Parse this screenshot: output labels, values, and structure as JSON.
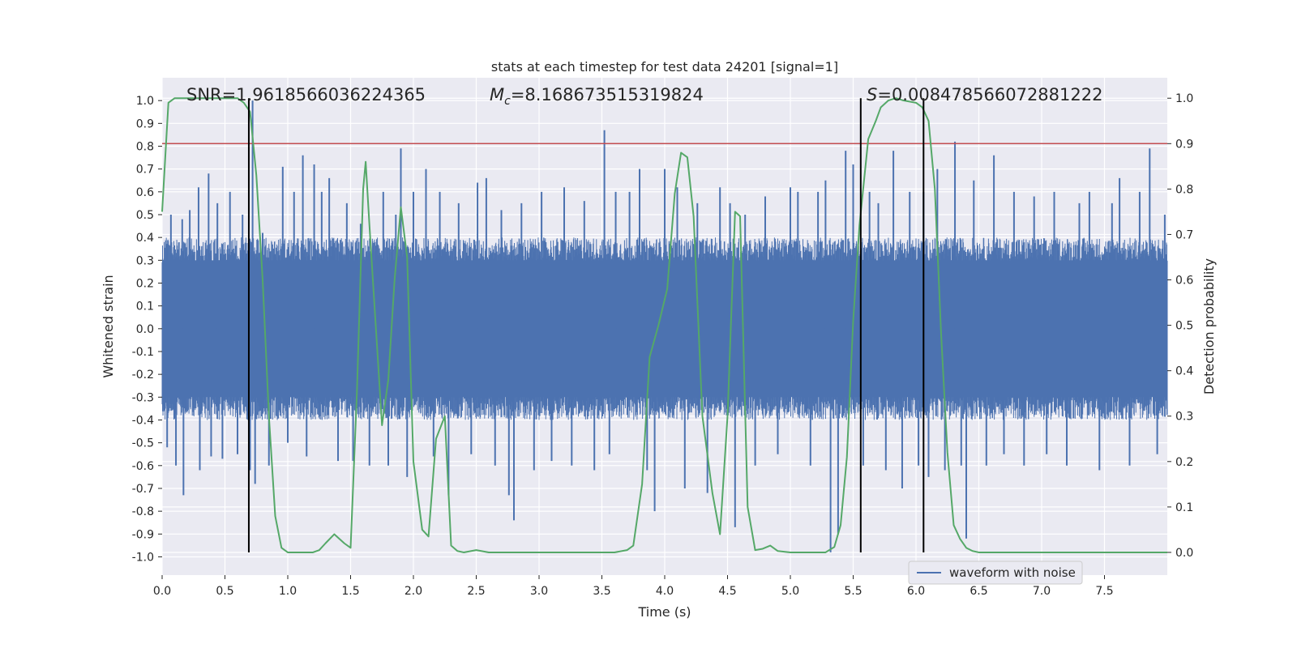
{
  "chart_data": {
    "type": "line",
    "title": "stats at each timestep for test data 24201 [signal=1]",
    "xlabel": "Time (s)",
    "ylabel": "Whitened strain",
    "y2label": "Detection probability",
    "xlim": [
      0.0,
      8.0
    ],
    "ylim": [
      -1.08,
      1.1
    ],
    "y2lim": [
      -0.05,
      1.045
    ],
    "xticks": [
      "0.0",
      "0.5",
      "1.0",
      "1.5",
      "2.0",
      "2.5",
      "3.0",
      "3.5",
      "4.0",
      "4.5",
      "5.0",
      "5.5",
      "6.0",
      "6.5",
      "7.0",
      "7.5"
    ],
    "yticks": [
      "1.0",
      "0.9",
      "0.8",
      "0.7",
      "0.6",
      "0.5",
      "0.4",
      "0.3",
      "0.2",
      "0.1",
      "0.0",
      "-0.1",
      "-0.2",
      "-0.3",
      "-0.4",
      "-0.5",
      "-0.6",
      "-0.7",
      "-0.8",
      "-0.9",
      "-1.0"
    ],
    "y2ticks": [
      "1.0",
      "0.9",
      "0.8",
      "0.7",
      "0.6",
      "0.5",
      "0.4",
      "0.3",
      "0.2",
      "0.1",
      "0.0"
    ],
    "grid": true,
    "legend": {
      "placement": "lower-right",
      "entries": [
        "waveform with noise"
      ]
    },
    "annotations": {
      "snr_label": "SNR=1.9618566036224365",
      "mc_symbol": "M",
      "mc_sub": "c",
      "mc_value": "=8.168673515319824",
      "s_symbol": "S",
      "s_value": "=0.008478566072881222"
    },
    "threshold": {
      "value": 0.9,
      "axis": "y2",
      "color": "#c44e52"
    },
    "vertical_lines": [
      0.69,
      5.56,
      6.06
    ],
    "waveform": {
      "name": "waveform with noise",
      "color": "#4c72b0",
      "envelope_typical": 0.4,
      "spikes": [
        [
          0.04,
          -0.52
        ],
        [
          0.07,
          0.5
        ],
        [
          0.11,
          -0.6
        ],
        [
          0.16,
          0.48
        ],
        [
          0.17,
          -0.73
        ],
        [
          0.22,
          0.52
        ],
        [
          0.29,
          0.62
        ],
        [
          0.3,
          -0.62
        ],
        [
          0.37,
          0.68
        ],
        [
          0.39,
          -0.56
        ],
        [
          0.44,
          0.55
        ],
        [
          0.48,
          -0.57
        ],
        [
          0.54,
          0.6
        ],
        [
          0.6,
          -0.55
        ],
        [
          0.64,
          0.5
        ],
        [
          0.7,
          -0.62
        ],
        [
          0.72,
          1.0
        ],
        [
          0.74,
          -0.68
        ],
        [
          0.8,
          0.42
        ],
        [
          0.85,
          -0.6
        ],
        [
          0.96,
          0.71
        ],
        [
          1.0,
          -0.5
        ],
        [
          1.05,
          0.6
        ],
        [
          1.12,
          0.76
        ],
        [
          1.15,
          -0.56
        ],
        [
          1.21,
          0.72
        ],
        [
          1.27,
          0.6
        ],
        [
          1.33,
          0.66
        ],
        [
          1.4,
          -0.58
        ],
        [
          1.47,
          0.55
        ],
        [
          1.52,
          -0.58
        ],
        [
          1.58,
          0.46
        ],
        [
          1.65,
          -0.6
        ],
        [
          1.76,
          0.6
        ],
        [
          1.8,
          -0.6
        ],
        [
          1.86,
          0.5
        ],
        [
          1.9,
          0.79
        ],
        [
          1.95,
          -0.65
        ],
        [
          2.0,
          0.6
        ],
        [
          2.1,
          0.7
        ],
        [
          2.16,
          -0.56
        ],
        [
          2.21,
          0.6
        ],
        [
          2.28,
          -0.73
        ],
        [
          2.36,
          0.55
        ],
        [
          2.46,
          -0.55
        ],
        [
          2.51,
          0.64
        ],
        [
          2.58,
          0.66
        ],
        [
          2.65,
          -0.6
        ],
        [
          2.7,
          0.52
        ],
        [
          2.76,
          -0.73
        ],
        [
          2.8,
          -0.84
        ],
        [
          2.86,
          0.55
        ],
        [
          2.96,
          -0.62
        ],
        [
          3.02,
          0.6
        ],
        [
          3.1,
          -0.58
        ],
        [
          3.2,
          0.62
        ],
        [
          3.26,
          -0.6
        ],
        [
          3.36,
          0.56
        ],
        [
          3.44,
          -0.62
        ],
        [
          3.52,
          0.87
        ],
        [
          3.56,
          -0.55
        ],
        [
          3.61,
          0.6
        ],
        [
          3.72,
          0.6
        ],
        [
          3.8,
          0.7
        ],
        [
          3.86,
          -0.62
        ],
        [
          3.92,
          -0.8
        ],
        [
          4.0,
          0.7
        ],
        [
          4.1,
          0.62
        ],
        [
          4.16,
          -0.7
        ],
        [
          4.26,
          0.55
        ],
        [
          4.34,
          -0.72
        ],
        [
          4.44,
          0.62
        ],
        [
          4.52,
          0.55
        ],
        [
          4.56,
          -0.87
        ],
        [
          4.64,
          0.5
        ],
        [
          4.72,
          -0.6
        ],
        [
          4.8,
          0.58
        ],
        [
          4.9,
          -0.55
        ],
        [
          5.0,
          0.62
        ],
        [
          5.06,
          0.6
        ],
        [
          5.16,
          -0.6
        ],
        [
          5.22,
          0.6
        ],
        [
          5.28,
          0.65
        ],
        [
          5.32,
          -0.98
        ],
        [
          5.38,
          -0.9
        ],
        [
          5.44,
          0.78
        ],
        [
          5.5,
          0.72
        ],
        [
          5.58,
          -0.6
        ],
        [
          5.63,
          0.6
        ],
        [
          5.7,
          0.55
        ],
        [
          5.76,
          -0.62
        ],
        [
          5.82,
          0.78
        ],
        [
          5.89,
          -0.7
        ],
        [
          5.95,
          0.6
        ],
        [
          6.02,
          -0.6
        ],
        [
          6.06,
          0.6
        ],
        [
          6.1,
          -0.65
        ],
        [
          6.17,
          0.7
        ],
        [
          6.23,
          -0.62
        ],
        [
          6.31,
          0.82
        ],
        [
          6.36,
          -0.6
        ],
        [
          6.4,
          -0.92
        ],
        [
          6.46,
          0.65
        ],
        [
          6.56,
          -0.6
        ],
        [
          6.62,
          0.76
        ],
        [
          6.7,
          -0.55
        ],
        [
          6.78,
          0.6
        ],
        [
          6.86,
          -0.6
        ],
        [
          6.94,
          0.58
        ],
        [
          7.04,
          -0.55
        ],
        [
          7.1,
          0.6
        ],
        [
          7.2,
          -0.6
        ],
        [
          7.3,
          0.55
        ],
        [
          7.38,
          0.6
        ],
        [
          7.46,
          -0.62
        ],
        [
          7.56,
          0.55
        ],
        [
          7.62,
          0.66
        ],
        [
          7.7,
          -0.6
        ],
        [
          7.78,
          0.6
        ],
        [
          7.86,
          0.79
        ],
        [
          7.92,
          -0.55
        ],
        [
          7.98,
          0.5
        ]
      ]
    },
    "detection_probability": {
      "color": "#55a868",
      "x": [
        0.0,
        0.05,
        0.1,
        0.15,
        0.2,
        0.25,
        0.3,
        0.35,
        0.4,
        0.45,
        0.5,
        0.55,
        0.6,
        0.65,
        0.7,
        0.75,
        0.8,
        0.85,
        0.9,
        0.95,
        1.0,
        1.05,
        1.1,
        1.2,
        1.25,
        1.3,
        1.37,
        1.45,
        1.5,
        1.55,
        1.6,
        1.62,
        1.65,
        1.7,
        1.75,
        1.8,
        1.85,
        1.9,
        1.95,
        2.0,
        2.07,
        2.12,
        2.18,
        2.25,
        2.3,
        2.35,
        2.4,
        2.5,
        2.6,
        2.8,
        3.0,
        3.2,
        3.4,
        3.6,
        3.7,
        3.75,
        3.82,
        3.88,
        3.95,
        4.02,
        4.08,
        4.13,
        4.18,
        4.23,
        4.3,
        4.38,
        4.44,
        4.5,
        4.56,
        4.6,
        4.66,
        4.72,
        4.78,
        4.84,
        4.9,
        5.0,
        5.1,
        5.2,
        5.28,
        5.35,
        5.4,
        5.45,
        5.5,
        5.55,
        5.62,
        5.68,
        5.72,
        5.78,
        5.84,
        5.9,
        6.0,
        6.05,
        6.1,
        6.15,
        6.2,
        6.25,
        6.3,
        6.35,
        6.4,
        6.45,
        6.5,
        6.6,
        6.8,
        7.0,
        7.2,
        7.4,
        7.6,
        7.8,
        7.9,
        8.0
      ],
      "y": [
        0.75,
        0.99,
        1.0,
        1.0,
        1.0,
        1.0,
        1.0,
        1.0,
        1.0,
        1.0,
        1.0,
        1.0,
        1.0,
        0.99,
        0.97,
        0.83,
        0.6,
        0.3,
        0.08,
        0.01,
        0.0,
        0.0,
        0.0,
        0.0,
        0.005,
        0.02,
        0.04,
        0.02,
        0.01,
        0.35,
        0.8,
        0.86,
        0.72,
        0.5,
        0.28,
        0.38,
        0.6,
        0.76,
        0.65,
        0.2,
        0.05,
        0.035,
        0.25,
        0.3,
        0.015,
        0.003,
        0.0,
        0.005,
        0.0,
        0.0,
        0.0,
        0.0,
        0.0,
        0.0,
        0.005,
        0.015,
        0.15,
        0.43,
        0.5,
        0.58,
        0.79,
        0.88,
        0.87,
        0.74,
        0.3,
        0.13,
        0.04,
        0.3,
        0.75,
        0.74,
        0.1,
        0.005,
        0.008,
        0.015,
        0.003,
        0.0,
        0.0,
        0.0,
        0.0,
        0.012,
        0.06,
        0.21,
        0.51,
        0.72,
        0.91,
        0.95,
        0.98,
        0.995,
        1.0,
        0.995,
        0.99,
        0.98,
        0.95,
        0.8,
        0.48,
        0.22,
        0.06,
        0.03,
        0.01,
        0.003,
        0.0,
        0.0,
        0.0,
        0.0,
        0.0,
        0.0,
        0.0,
        0.0,
        0.0,
        0.0
      ]
    }
  }
}
